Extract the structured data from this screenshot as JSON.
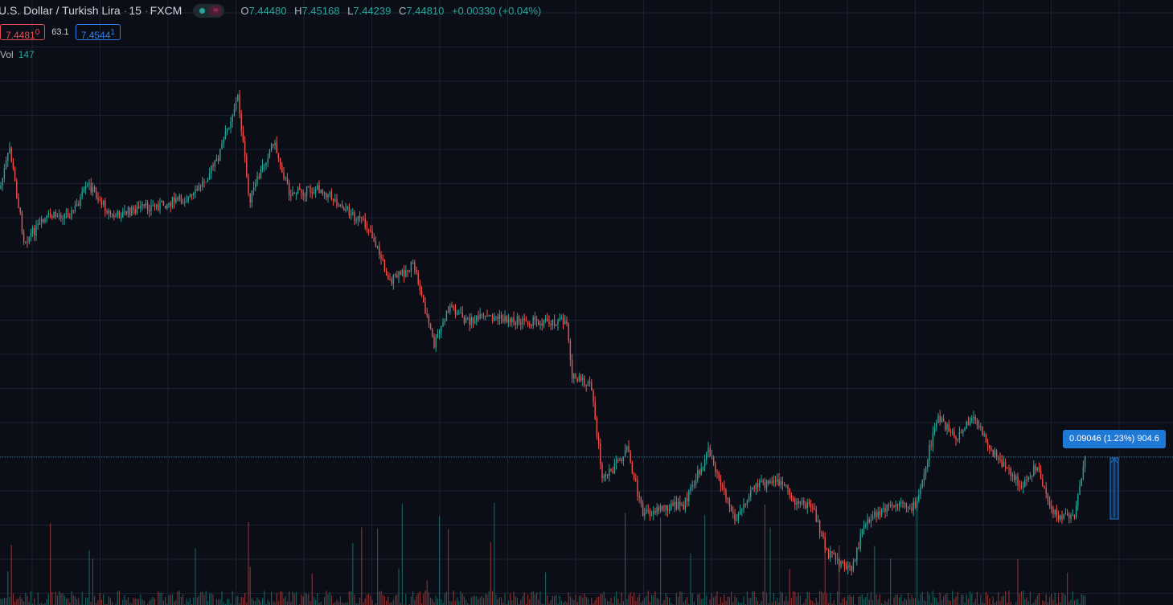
{
  "header": {
    "symbol_title": "U.S. Dollar / Turkish Lira",
    "interval": "15",
    "exchange": "FXCM",
    "separator": "·",
    "indicator_icon_glyph": "≈",
    "ohlc": {
      "open_label": "O",
      "open_value": "7.44480",
      "high_label": "H",
      "high_value": "7.45168",
      "low_label": "L",
      "low_value": "7.44239",
      "close_label": "C",
      "close_value": "7.44810",
      "change": "+0.00330 (+0.04%)"
    }
  },
  "trade": {
    "sell_price": "7.4481",
    "sell_pip": "0",
    "spread": "63.1",
    "buy_price": "7.4544",
    "buy_pip": "1"
  },
  "volume": {
    "label": "Vol",
    "value": "147"
  },
  "measure": {
    "label": "0.09046 (1.23%) 904.6"
  },
  "colors": {
    "background": "#0c0e17",
    "grid": "#1c2030",
    "up": "#26a69a",
    "down": "#ef5350",
    "sell": "#e84b55",
    "buy": "#2f7ee8",
    "measure": "#1e78d6"
  }
}
